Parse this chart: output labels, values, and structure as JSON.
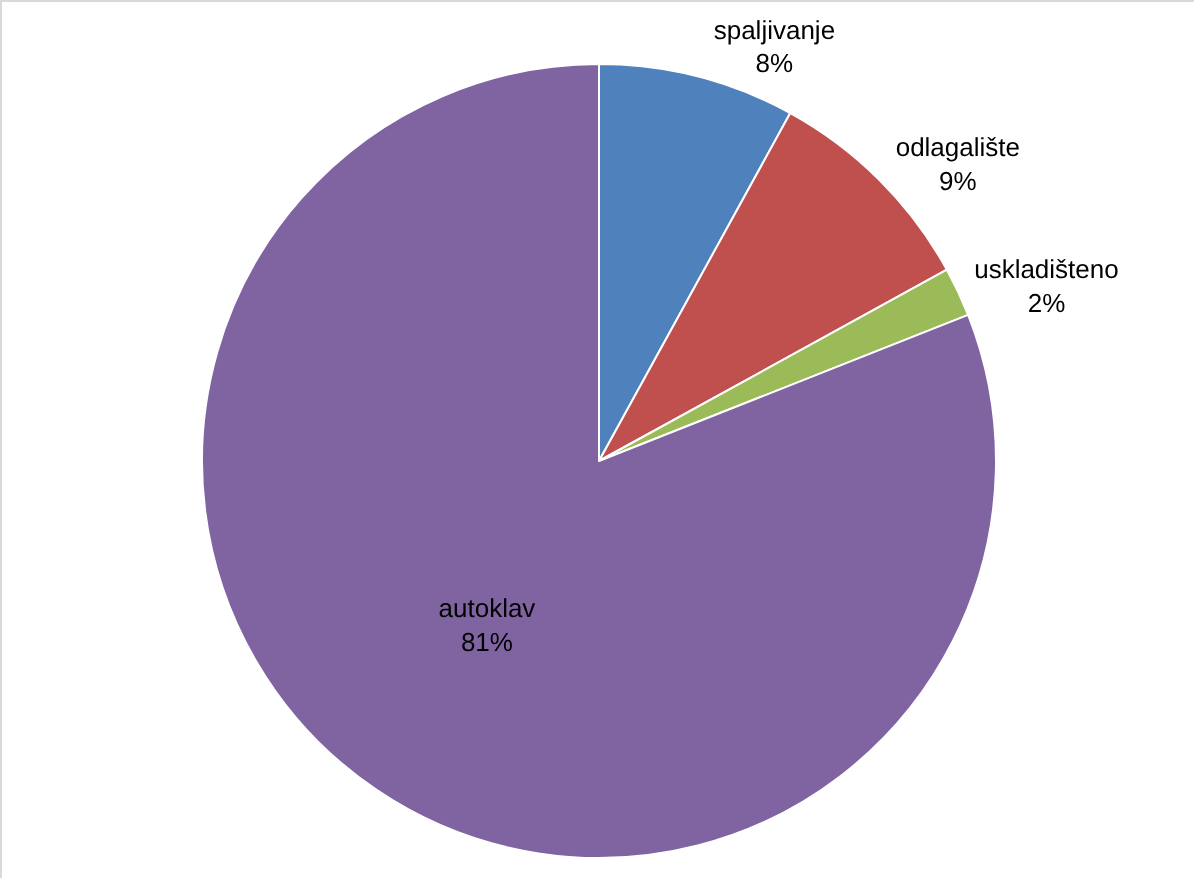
{
  "chart_data": {
    "type": "pie",
    "categories": [
      "spaljivanje",
      "odlagalište",
      "uskladišteno",
      "autoklav"
    ],
    "values": [
      8,
      9,
      2,
      81
    ],
    "colors": [
      "#4f81bd",
      "#c0504d",
      "#9bbb59",
      "#8064a2"
    ],
    "value_labels": [
      "8%",
      "9%",
      "2%",
      "81%"
    ],
    "legend": false
  }
}
